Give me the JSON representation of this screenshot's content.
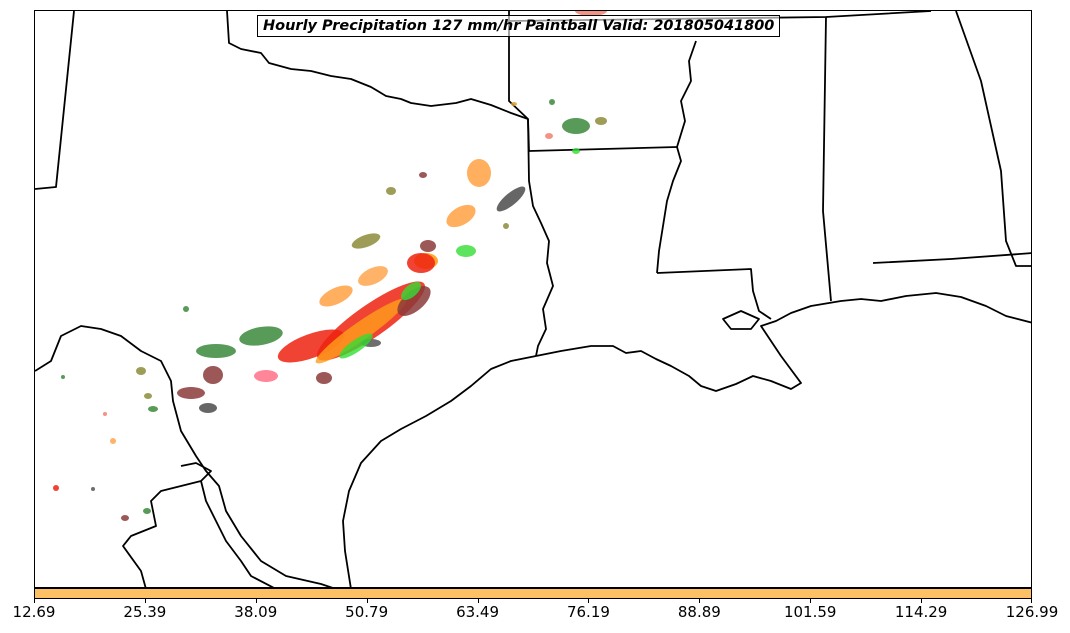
{
  "title": "Hourly Precipitation 127 mm/hr Paintball Valid: 201805041800",
  "colorbar": {
    "color": "#fec065",
    "tick_labels": [
      "12.69",
      "25.39",
      "38.09",
      "50.79",
      "63.49",
      "76.19",
      "88.89",
      "101.59",
      "114.29",
      "126.99"
    ]
  },
  "colors": {
    "dark_green": "#3b8a3b",
    "bright_green": "#33dd33",
    "olive": "#8c8c3a",
    "orange": "#ff9f1a",
    "light_orange": "#ffa64d",
    "salmon": "#f08070",
    "red": "#ee2211",
    "brown": "#8b3a3a",
    "grey": "#555555",
    "pink": "#ff6680",
    "border": "#000000"
  }
}
